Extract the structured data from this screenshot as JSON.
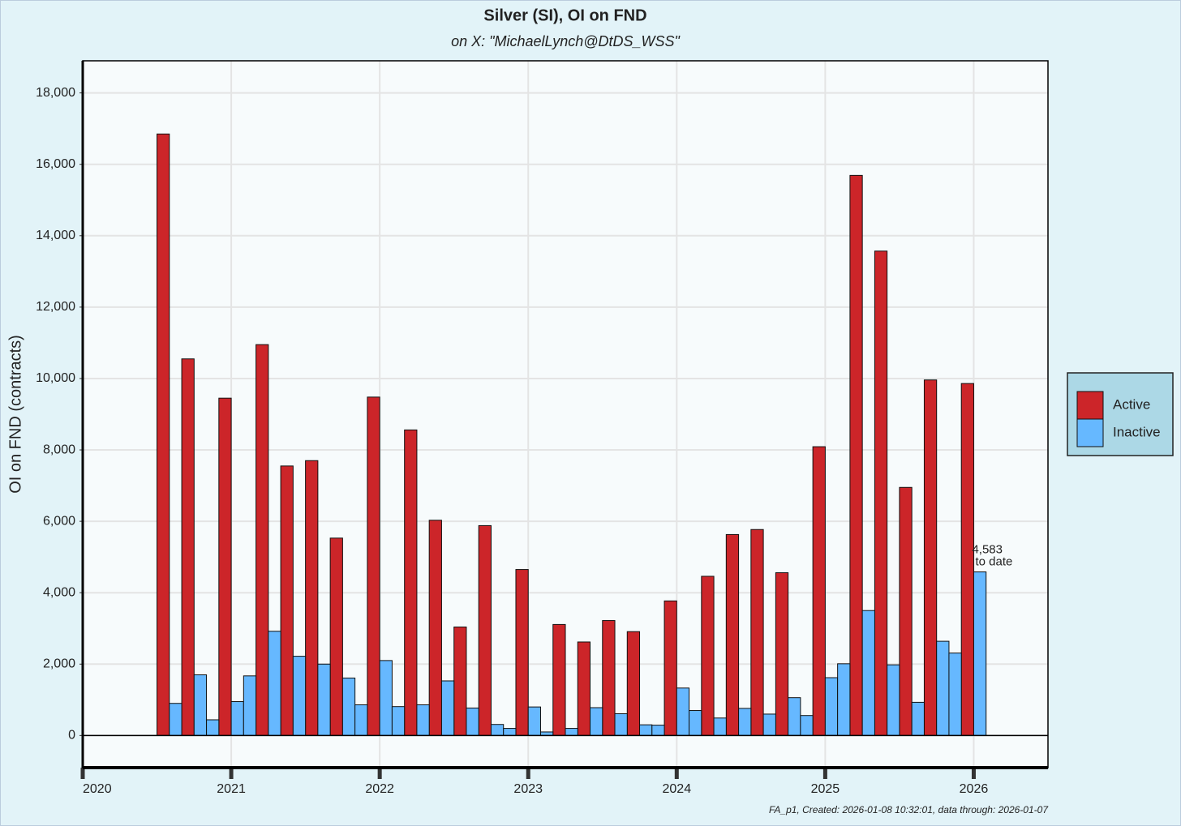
{
  "chart_data": {
    "type": "bar",
    "title": "Silver (SI), OI on FND",
    "subtitle": "on X:   \"MichaelLynch@DtDS_WSS\"",
    "ylabel": "OI on FND (contracts)",
    "footer": "FA_p1, Created: 2026-01-08 10:32:01, data through: 2026-01-07",
    "annotation": "to date",
    "x": [
      2020.5,
      2020.5833,
      2020.6667,
      2020.75,
      2020.8333,
      2020.9167,
      2021,
      2021.0833,
      2021.1667,
      2021.25,
      2021.3333,
      2021.4167,
      2021.5,
      2021.5833,
      2021.6667,
      2021.75,
      2021.8333,
      2021.9167,
      2022,
      2022.0833,
      2022.1667,
      2022.25,
      2022.3333,
      2022.4167,
      2022.5,
      2022.5833,
      2022.6667,
      2022.75,
      2022.8333,
      2022.9167,
      2023,
      2023.0833,
      2023.1667,
      2023.25,
      2023.3333,
      2023.4167,
      2023.5,
      2023.5833,
      2023.6667,
      2023.75,
      2023.8333,
      2023.9167,
      2024,
      2024.0833,
      2024.1667,
      2024.25,
      2024.3333,
      2024.4167,
      2024.5,
      2024.5833,
      2024.6667,
      2024.75,
      2024.8333,
      2024.9167,
      2025,
      2025.0833,
      2025.1667,
      2025.25,
      2025.3333,
      2025.4167,
      2025.5,
      2025.5833,
      2025.6667,
      2025.75,
      2025.8333,
      2025.9167,
      2026
    ],
    "series": [
      {
        "name": "Active",
        "color": "#cc2529",
        "values": [
          16850,
          null,
          10550,
          null,
          null,
          9450,
          null,
          null,
          10950,
          null,
          7550,
          null,
          7700,
          null,
          5530,
          null,
          null,
          9480,
          null,
          null,
          8560,
          null,
          6030,
          null,
          3040,
          null,
          5880,
          null,
          null,
          4650,
          null,
          null,
          3110,
          null,
          2620,
          null,
          3220,
          null,
          2910,
          null,
          null,
          3770,
          null,
          null,
          4460,
          null,
          5630,
          null,
          5770,
          null,
          4560,
          null,
          null,
          8090,
          null,
          null,
          15690,
          null,
          13570,
          null,
          6950,
          null,
          9960,
          null,
          null,
          9860,
          null
        ]
      },
      {
        "name": "Inactive",
        "color": "#66b8ff",
        "values": [
          null,
          900,
          null,
          1700,
          440,
          null,
          950,
          1670,
          null,
          2920,
          null,
          2220,
          null,
          2000,
          null,
          1610,
          860,
          null,
          2100,
          810,
          null,
          860,
          null,
          1530,
          null,
          770,
          null,
          310,
          200,
          null,
          800,
          100,
          null,
          200,
          null,
          780,
          null,
          610,
          null,
          300,
          290,
          null,
          1330,
          700,
          null,
          490,
          null,
          760,
          null,
          600,
          null,
          1060,
          560,
          null,
          1620,
          2010,
          null,
          3500,
          null,
          1980,
          null,
          930,
          null,
          2640,
          2310,
          null,
          4583
        ],
        "value_labels": [
          null,
          null,
          null,
          null,
          null,
          null,
          null,
          null,
          null,
          null,
          null,
          null,
          null,
          null,
          null,
          null,
          null,
          null,
          null,
          null,
          null,
          null,
          null,
          null,
          null,
          null,
          null,
          null,
          null,
          null,
          null,
          null,
          null,
          null,
          null,
          null,
          null,
          null,
          null,
          null,
          null,
          null,
          null,
          null,
          null,
          null,
          null,
          null,
          null,
          null,
          null,
          null,
          null,
          null,
          null,
          null,
          null,
          null,
          null,
          null,
          null,
          null,
          null,
          null,
          null,
          null,
          "4,583"
        ]
      }
    ],
    "xlim": [
      2020,
      2026.5
    ],
    "xticks": [
      2020,
      2021,
      2022,
      2023,
      2024,
      2025,
      2026
    ],
    "ylim": [
      -900,
      18900
    ],
    "yticks": [
      0,
      {
        "value": 2000,
        "label": "2,000"
      },
      {
        "value": 4000,
        "label": "4,000"
      },
      {
        "value": 6000,
        "label": "6,000"
      },
      {
        "value": 8000,
        "label": "8,000"
      },
      {
        "value": 10000,
        "label": "10,000"
      },
      {
        "value": 12000,
        "label": "12,000"
      },
      {
        "value": 14000,
        "label": "14,000"
      },
      {
        "value": 16000,
        "label": "16,000"
      },
      {
        "value": 18000,
        "label": "18,000"
      }
    ],
    "grid": true,
    "legend": "right"
  }
}
